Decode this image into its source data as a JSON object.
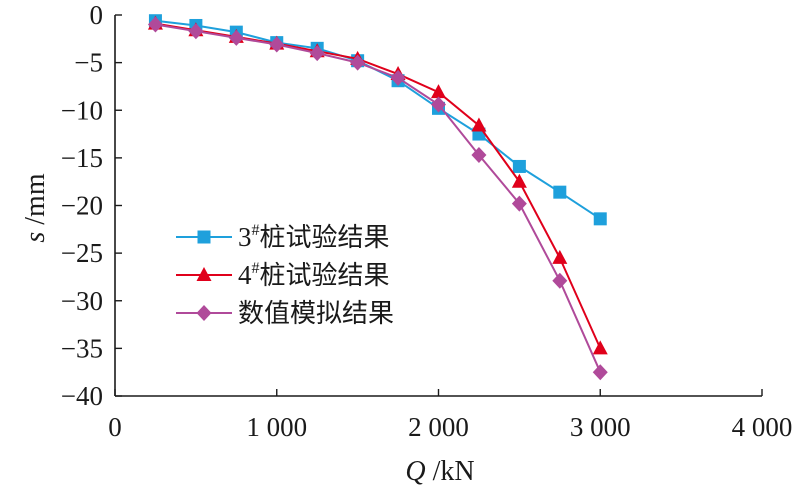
{
  "chart_data": {
    "type": "line",
    "xlabel": {
      "var": "Q",
      "unit": " /kN"
    },
    "ylabel": {
      "var": "s",
      "unit": " /mm"
    },
    "xlim": [
      0,
      4000
    ],
    "ylim": [
      -40,
      0
    ],
    "x_ticks": [
      0,
      1000,
      2000,
      3000,
      4000
    ],
    "x_tick_labels": [
      "0",
      "1 000",
      "2 000",
      "3 000",
      "4 000"
    ],
    "y_ticks": [
      0,
      -5,
      -10,
      -15,
      -20,
      -25,
      -30,
      -35,
      -40
    ],
    "y_tick_labels": [
      "0",
      "−5",
      "−10",
      "−15",
      "−20",
      "−25",
      "−30",
      "−35",
      "−40"
    ],
    "grid": false,
    "legend_position": "left-middle",
    "series": [
      {
        "name": "3#桩试验结果",
        "legend_parts": {
          "num": "3",
          "sup": "#",
          "text": "桩试验结果"
        },
        "color": "#1ea0dc",
        "marker": "square",
        "x": [
          250,
          500,
          750,
          1000,
          1250,
          1500,
          1750,
          2000,
          2250,
          2500,
          2750,
          3000
        ],
        "y": [
          -0.6,
          -1.1,
          -1.8,
          -2.9,
          -3.5,
          -4.8,
          -6.9,
          -9.8,
          -12.5,
          -15.9,
          -18.6,
          -21.4
        ]
      },
      {
        "name": "4#桩试验结果",
        "legend_parts": {
          "num": "4",
          "sup": "#",
          "text": "桩试验结果"
        },
        "color": "#e0001b",
        "marker": "triangle",
        "x": [
          250,
          500,
          750,
          1000,
          1250,
          1500,
          1750,
          2000,
          2250,
          2500,
          2750,
          3000
        ],
        "y": [
          -0.9,
          -1.6,
          -2.3,
          -3.0,
          -3.8,
          -4.6,
          -6.2,
          -8.1,
          -11.6,
          -17.5,
          -25.5,
          -35.0
        ]
      },
      {
        "name": "数值模拟结果",
        "legend_parts": {
          "num": "",
          "sup": "",
          "text": "数值模拟结果"
        },
        "color": "#b04a9a",
        "marker": "diamond",
        "x": [
          250,
          500,
          750,
          1000,
          1250,
          1500,
          1750,
          2000,
          2250,
          2500,
          2750,
          3000
        ],
        "y": [
          -1.0,
          -1.7,
          -2.4,
          -3.1,
          -4.0,
          -5.0,
          -6.6,
          -9.4,
          -14.7,
          -19.8,
          -27.9,
          -37.5
        ]
      }
    ]
  }
}
